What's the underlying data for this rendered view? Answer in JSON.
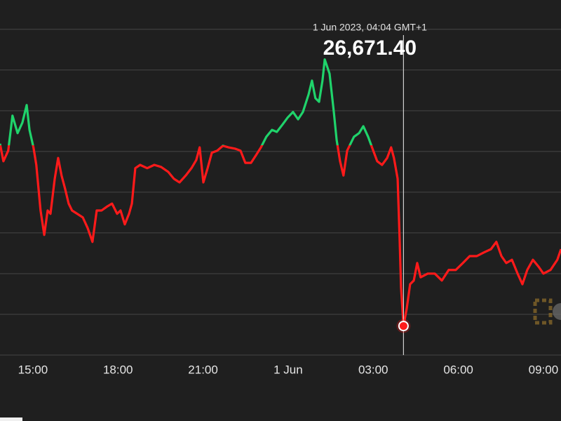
{
  "chart_data": {
    "type": "line",
    "x": [
      13.84,
      13.96,
      14.13,
      14.28,
      14.46,
      14.63,
      14.78,
      14.88,
      15.02,
      15.12,
      15.27,
      15.4,
      15.52,
      15.62,
      15.77,
      15.89,
      16.01,
      16.14,
      16.26,
      16.38,
      16.56,
      16.76,
      16.93,
      17.1,
      17.25,
      17.42,
      17.6,
      17.79,
      17.97,
      18.09,
      18.24,
      18.39,
      18.49,
      18.61,
      18.78,
      19.03,
      19.28,
      19.52,
      19.77,
      19.97,
      20.17,
      20.39,
      20.59,
      20.76,
      20.88,
      21.01,
      21.16,
      21.31,
      21.5,
      21.7,
      21.9,
      22.12,
      22.32,
      22.49,
      22.69,
      22.86,
      23.04,
      23.23,
      23.43,
      23.6,
      23.8,
      23.98,
      24.17,
      24.35,
      24.52,
      24.72,
      24.84,
      24.96,
      25.09,
      25.21,
      25.29,
      25.46,
      25.61,
      25.71,
      25.83,
      25.95,
      26.08,
      26.2,
      26.32,
      26.5,
      26.65,
      26.82,
      27.0,
      27.14,
      27.31,
      27.49,
      27.63,
      27.73,
      27.86,
      27.93,
      27.98,
      28.0667,
      28.18,
      28.3,
      28.43,
      28.55,
      28.67,
      28.92,
      29.17,
      29.42,
      29.66,
      29.91,
      30.16,
      30.4,
      30.65,
      30.9,
      31.15,
      31.34,
      31.52,
      31.69,
      31.89,
      32.09,
      32.26,
      32.43,
      32.63,
      32.83,
      33.0,
      33.25,
      33.49,
      33.62
    ],
    "series": [
      {
        "values": [
          27119,
          27076,
          27102,
          27188,
          27145,
          27171,
          27214,
          27153,
          27110,
          27067,
          26955,
          26895,
          26955,
          26947,
          27033,
          27084,
          27041,
          27007,
          26972,
          26955,
          26947,
          26938,
          26912,
          26878,
          26955,
          26955,
          26964,
          26972,
          26947,
          26955,
          26921,
          26947,
          26972,
          27059,
          27067,
          27059,
          27067,
          27062,
          27050,
          27033,
          27024,
          27041,
          27059,
          27079,
          27110,
          27024,
          27059,
          27097,
          27102,
          27114,
          27110,
          27107,
          27102,
          27072,
          27072,
          27090,
          27110,
          27136,
          27153,
          27148,
          27166,
          27183,
          27197,
          27179,
          27197,
          27240,
          27274,
          27231,
          27222,
          27274,
          27326,
          27291,
          27197,
          27128,
          27076,
          27041,
          27102,
          27119,
          27136,
          27145,
          27162,
          27136,
          27102,
          27076,
          27067,
          27084,
          27110,
          27084,
          27033,
          26886,
          26766,
          26671.4,
          26714,
          26774,
          26783,
          26826,
          26791,
          26800,
          26800,
          26783,
          26809,
          26809,
          26826,
          26843,
          26843,
          26852,
          26860,
          26878,
          26843,
          26826,
          26834,
          26800,
          26774,
          26809,
          26834,
          26817,
          26800,
          26809,
          26834,
          26860
        ]
      }
    ],
    "up_color": "#1fd36b",
    "down_color": "#ff1a1a",
    "color_threshold": 27115,
    "xlim": [
      13.84,
      33.62
    ],
    "xticks": [
      {
        "value": 15,
        "label": "15:00"
      },
      {
        "value": 18,
        "label": "18:00"
      },
      {
        "value": 21,
        "label": "21:00"
      },
      {
        "value": 24,
        "label": "1 Jun"
      },
      {
        "value": 27,
        "label": "03:00"
      },
      {
        "value": 30,
        "label": "06:00"
      },
      {
        "value": 33,
        "label": "09:00"
      }
    ],
    "ylim": [
      26600,
      27472
    ],
    "ygrid": [
      26600,
      26700,
      26800,
      26900,
      27000,
      27100,
      27200,
      27300,
      27400
    ],
    "tooltip": {
      "title": "1 Jun 2023, 04:04 GMT+1",
      "x": 28.0667,
      "value": 26671.4,
      "value_label": "26,671.40"
    }
  }
}
